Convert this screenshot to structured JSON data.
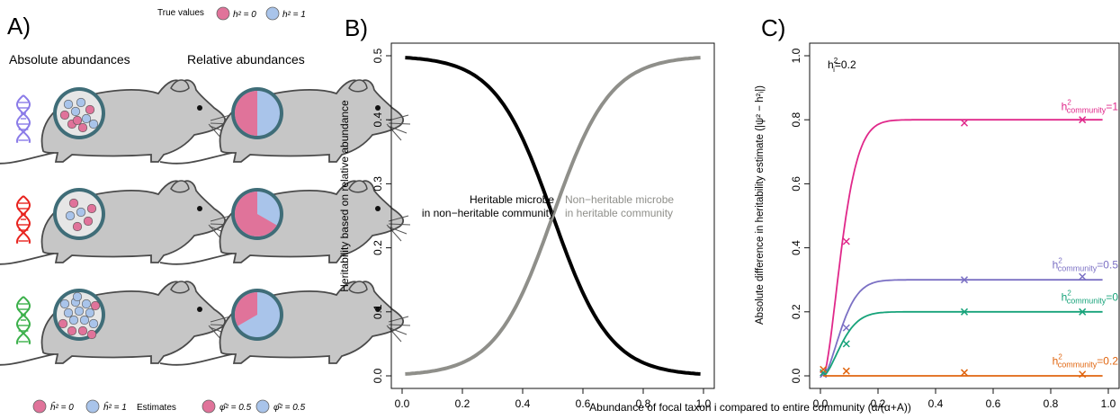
{
  "panel_a": {
    "letter": "A)",
    "true_values_label": "True values",
    "legend_h0": "h² = 0",
    "legend_h1": "h² = 1",
    "col_absolute": "Absolute abundances",
    "col_relative": "Relative abundances",
    "estimates_label": "Estimates",
    "est_h0": "ĥ² = 0",
    "est_h1": "ĥ² = 1",
    "est_phi_pink": "φ̂² = 0.5",
    "est_phi_blue": "φ̂² = 0.5",
    "colors": {
      "pink": "#e0739a",
      "blue": "#a9c4ea",
      "dna_row1": "#8a7be8",
      "dna_row2": "#e8231e",
      "dna_row3": "#3bb04a",
      "mouse": "#c7c7c7"
    },
    "rows": [
      {
        "dna": "purple",
        "abs_pink": 5,
        "abs_blue": 5,
        "rel_pink_frac": 0.5
      },
      {
        "dna": "red",
        "abs_pink": 4,
        "abs_blue": 2,
        "rel_pink_frac": 0.667
      },
      {
        "dna": "green",
        "abs_pink": 5,
        "abs_blue": 10,
        "rel_pink_frac": 0.333
      }
    ]
  },
  "chart_data": [
    {
      "type": "line",
      "panel": "B)",
      "xlabel": "",
      "ylabel": "Heritability based on relative abundance",
      "xlim": [
        0,
        1
      ],
      "ylim": [
        0,
        0.5
      ],
      "xticks": [
        "0.0",
        "0.2",
        "0.4",
        "0.6",
        "0.8",
        "1.0"
      ],
      "yticks": [
        "0.0",
        "0.1",
        "0.2",
        "0.3",
        "0.4",
        "0.5"
      ],
      "series": [
        {
          "color": "#000000",
          "x": [
            0.01,
            0.1,
            0.2,
            0.3,
            0.4,
            0.5,
            0.6,
            0.7,
            0.8,
            0.9,
            0.99
          ],
          "y": [
            0.5,
            0.494,
            0.47,
            0.422,
            0.345,
            0.25,
            0.155,
            0.078,
            0.03,
            0.006,
            0.0
          ]
        },
        {
          "color": "#8f8f8a",
          "x": [
            0.01,
            0.1,
            0.2,
            0.3,
            0.4,
            0.5,
            0.6,
            0.7,
            0.8,
            0.9,
            0.99
          ],
          "y": [
            0.0,
            0.006,
            0.03,
            0.078,
            0.155,
            0.25,
            0.345,
            0.422,
            0.47,
            0.494,
            0.5
          ]
        }
      ],
      "annotations": {
        "black_line1": "Heritable microbe",
        "black_line2": "in non−heritable community",
        "grey_line1": "Non−heritable microbe",
        "grey_line2": "in heritable community"
      },
      "shared_xlabel": "Abundance of focal taxon i compared to entire community (α/(α+A))"
    },
    {
      "type": "line",
      "panel": "C)",
      "ylabel": "Absolute difference in heritability estimate (|ψ² − h²ᵢ|)",
      "xlim": [
        0,
        1
      ],
      "ylim": [
        0,
        1
      ],
      "xticks": [
        "0.0",
        "0.2",
        "0.4",
        "0.6",
        "0.8",
        "1.0"
      ],
      "yticks": [
        "0.0",
        "0.2",
        "0.4",
        "0.6",
        "0.8",
        "1.0"
      ],
      "inset_text": {
        "h": "h",
        "sup": "2",
        "sub": "i",
        "value": "=0.2"
      },
      "series": [
        {
          "label_base": "h",
          "label_sub": "community",
          "label_val": "=1",
          "color": "#e0288a",
          "plateau": 0.8,
          "points_x": [
            0.01,
            0.09,
            0.5,
            0.91
          ],
          "points_y": [
            0.005,
            0.42,
            0.79,
            0.8
          ]
        },
        {
          "label_base": "h",
          "label_sub": "community",
          "label_val": "=0.5",
          "color": "#7b70c4",
          "plateau": 0.3,
          "points_x": [
            0.01,
            0.09,
            0.5,
            0.91
          ],
          "points_y": [
            0.005,
            0.15,
            0.3,
            0.31
          ]
        },
        {
          "label_base": "h",
          "label_sub": "community",
          "label_val": "=0",
          "color": "#17a37a",
          "plateau": 0.2,
          "points_x": [
            0.01,
            0.09,
            0.5,
            0.91
          ],
          "points_y": [
            0.01,
            0.1,
            0.2,
            0.2
          ]
        },
        {
          "label_base": "h",
          "label_sub": "community",
          "label_val": "=0.2",
          "color": "#e0650f",
          "plateau": 0.0,
          "points_x": [
            0.01,
            0.09,
            0.5,
            0.91
          ],
          "points_y": [
            0.02,
            0.015,
            0.01,
            0.005
          ]
        }
      ]
    }
  ]
}
